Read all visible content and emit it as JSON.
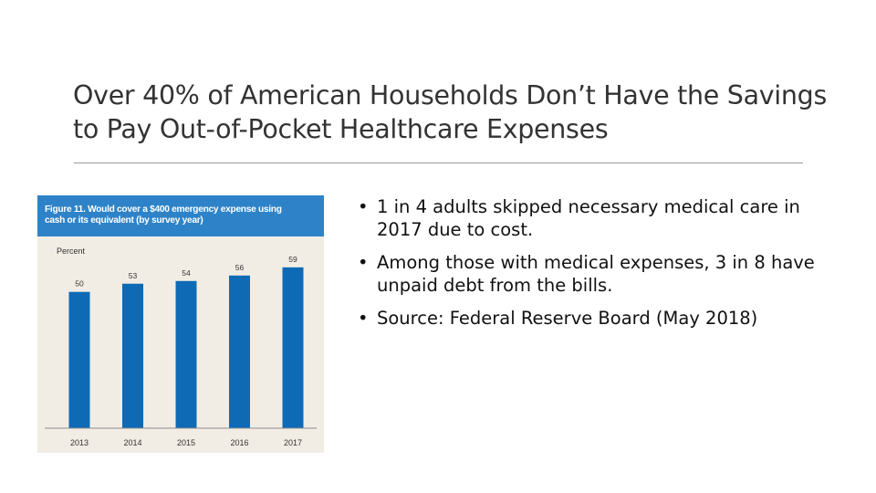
{
  "slide": {
    "title": "Over 40% of American Households Don’t Have the Savings to Pay Out-of-Pocket Healthcare Expenses",
    "bullet_glyph": "•",
    "bullets": [
      "1 in 4 adults skipped necessary medical care in 2017 due to cost.",
      "Among those with medical expenses, 3 in 8 have unpaid debt from the bills.",
      "Source: Federal Reserve Board (May 2018)"
    ]
  },
  "figure": {
    "title_line1": "Figure 11. Would cover a $400 emergency expense using",
    "title_line2": "cash or its equivalent (by survey year)",
    "header_color": "#2e83c8",
    "background_color": "#f2ede4"
  },
  "chart_data": {
    "type": "bar",
    "title": "Figure 11. Would cover a $400 emergency expense using cash or its equivalent (by survey year)",
    "ylabel": "Percent",
    "categories": [
      "2013",
      "2014",
      "2015",
      "2016",
      "2017"
    ],
    "values": [
      50,
      53,
      54,
      56,
      59
    ],
    "data_labels": [
      "50",
      "53",
      "54",
      "56",
      "59"
    ],
    "ylim": [
      0,
      70
    ],
    "grid": false,
    "bar_color": "#0e6ab5"
  }
}
